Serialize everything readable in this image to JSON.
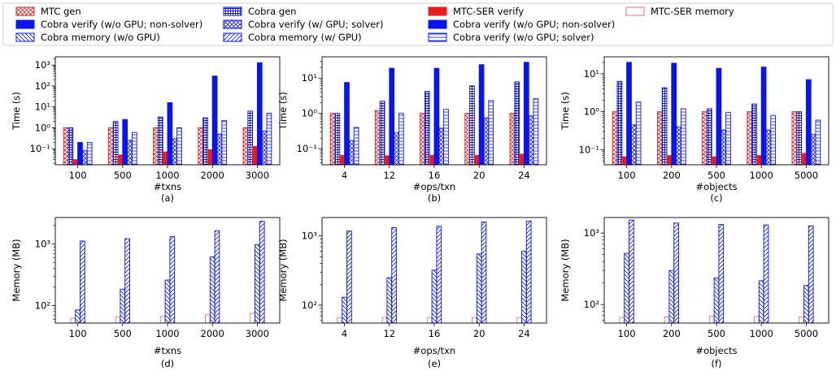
{
  "colors": {
    "red": "#e81e1e",
    "blue": "#0a14f0",
    "pink": "#f07272"
  },
  "legend": [
    {
      "label": "MTC gen",
      "style": "redcross"
    },
    {
      "label": "Cobra verify (w/o GPU; non-solver)",
      "style": "bluesolid"
    },
    {
      "label": "Cobra memory (w/o GPU)",
      "style": "bluebackslash"
    },
    {
      "label": "Cobra gen",
      "style": "bluegrid"
    },
    {
      "label": "Cobra verify (w/ GPU; solver)",
      "style": "bluecross"
    },
    {
      "label": "Cobra memory (w/ GPU)",
      "style": "blueslash"
    },
    {
      "label": "MTC-SER verify",
      "style": "redsolid"
    },
    {
      "label": "Cobra verify (w/o GPU; non-solver)",
      "style": "bluesolid"
    },
    {
      "label": "Cobra verify (w/o GPU; solver)",
      "style": "bluehline"
    },
    {
      "label": "MTC-SER memory",
      "style": "redoutline"
    }
  ],
  "chart_data": [
    {
      "type": "bar",
      "panel": "(a)",
      "xlabel": "#txns",
      "ylabel": "Time (s)",
      "yscale": "log",
      "categories": [
        "100",
        "500",
        "1000",
        "2000",
        "3000"
      ],
      "series": [
        {
          "name": "MTC gen",
          "style": "redcross",
          "values": [
            1.0,
            1.0,
            1.0,
            1.0,
            1.0
          ]
        },
        {
          "name": "Cobra gen",
          "style": "bluegrid",
          "values": [
            1.0,
            2.0,
            3.3,
            3.0,
            6.3
          ]
        },
        {
          "name": "MTC-SER verify",
          "style": "redsolid",
          "values": [
            0.03,
            0.05,
            0.07,
            0.09,
            0.13
          ]
        },
        {
          "name": "Cobra verify (w/o GPU; non-solver)",
          "style": "bluesolid",
          "values": [
            0.2,
            2.5,
            16,
            300,
            1300
          ]
        },
        {
          "name": "Cobra verify (w/ GPU; solver)",
          "style": "bluecross",
          "values": [
            0.08,
            0.25,
            0.3,
            0.5,
            0.7
          ]
        },
        {
          "name": "Cobra verify (w/o GPU; solver)",
          "style": "bluehline",
          "values": [
            0.2,
            0.6,
            1.0,
            2.2,
            5.0
          ]
        }
      ]
    },
    {
      "type": "bar",
      "panel": "(b)",
      "xlabel": "#ops/txn",
      "ylabel": "Time (s)",
      "yscale": "log",
      "categories": [
        "4",
        "12",
        "16",
        "20",
        "24"
      ],
      "series": [
        {
          "name": "MTC gen",
          "style": "redcross",
          "values": [
            1.0,
            1.2,
            1.0,
            1.0,
            1.0
          ]
        },
        {
          "name": "Cobra gen",
          "style": "bluegrid",
          "values": [
            1.0,
            2.2,
            4.2,
            6.0,
            7.8
          ]
        },
        {
          "name": "MTC-SER verify",
          "style": "redsolid",
          "values": [
            0.065,
            0.063,
            0.065,
            0.065,
            0.07
          ]
        },
        {
          "name": "Cobra verify (w/o GPU; non-solver)",
          "style": "bluesolid",
          "values": [
            7.5,
            19,
            19,
            24,
            28
          ]
        },
        {
          "name": "Cobra verify (w/ GPU; solver)",
          "style": "bluecross",
          "values": [
            0.17,
            0.28,
            0.38,
            0.75,
            0.85
          ]
        },
        {
          "name": "Cobra verify (w/o GPU; solver)",
          "style": "bluehline",
          "values": [
            0.4,
            1.0,
            1.3,
            2.3,
            2.6
          ]
        }
      ]
    },
    {
      "type": "bar",
      "panel": "(c)",
      "xlabel": "#objects",
      "ylabel": "Time (s)",
      "yscale": "log",
      "categories": [
        "100",
        "200",
        "500",
        "1000",
        "5000"
      ],
      "series": [
        {
          "name": "MTC gen",
          "style": "redcross",
          "values": [
            1.0,
            1.0,
            1.0,
            1.0,
            1.0
          ]
        },
        {
          "name": "Cobra gen",
          "style": "bluegrid",
          "values": [
            6.3,
            4.3,
            1.2,
            1.6,
            1.0
          ]
        },
        {
          "name": "MTC-SER verify",
          "style": "redsolid",
          "values": [
            0.065,
            0.07,
            0.065,
            0.07,
            0.08
          ]
        },
        {
          "name": "Cobra verify (w/o GPU; non-solver)",
          "style": "bluesolid",
          "values": [
            20,
            19,
            14,
            15,
            7
          ]
        },
        {
          "name": "Cobra verify (w/ GPU; solver)",
          "style": "bluecross",
          "values": [
            0.45,
            0.4,
            0.33,
            0.33,
            0.25
          ]
        },
        {
          "name": "Cobra verify (w/o GPU; solver)",
          "style": "bluehline",
          "values": [
            1.8,
            1.2,
            0.95,
            0.8,
            0.6
          ]
        }
      ]
    },
    {
      "type": "bar",
      "panel": "(d)",
      "xlabel": "#txns",
      "ylabel": "Memory (MB)",
      "yscale": "log",
      "categories": [
        "100",
        "500",
        "1000",
        "2000",
        "3000"
      ],
      "series": [
        {
          "name": "MTC-SER memory",
          "style": "redoutline",
          "values": [
            62,
            65,
            67,
            71,
            75
          ]
        },
        {
          "name": "Cobra memory (w/o GPU)",
          "style": "bluebackslash",
          "values": [
            85,
            185,
            260,
            620,
            980
          ]
        },
        {
          "name": "Cobra memory (w/ GPU)",
          "style": "blueslash",
          "values": [
            1120,
            1220,
            1320,
            1650,
            2350
          ]
        }
      ]
    },
    {
      "type": "bar",
      "panel": "(e)",
      "xlabel": "#ops/txn",
      "ylabel": "Memory (MB)",
      "yscale": "log",
      "categories": [
        "4",
        "12",
        "16",
        "20",
        "24"
      ],
      "series": [
        {
          "name": "MTC-SER memory",
          "style": "redoutline",
          "values": [
            66,
            66,
            66,
            66,
            66
          ]
        },
        {
          "name": "Cobra memory (w/o GPU)",
          "style": "bluebackslash",
          "values": [
            130,
            250,
            320,
            550,
            600
          ]
        },
        {
          "name": "Cobra memory (w/ GPU)",
          "style": "blueslash",
          "values": [
            1180,
            1320,
            1380,
            1600,
            1650
          ]
        }
      ]
    },
    {
      "type": "bar",
      "panel": "(f)",
      "xlabel": "#objects",
      "ylabel": "Memory (MB)",
      "yscale": "log",
      "categories": [
        "100",
        "200",
        "500",
        "1000",
        "5000"
      ],
      "series": [
        {
          "name": "MTC-SER memory",
          "style": "redoutline",
          "values": [
            66,
            67,
            68,
            68,
            67
          ]
        },
        {
          "name": "Cobra memory (w/o GPU)",
          "style": "bluebackslash",
          "values": [
            520,
            300,
            235,
            215,
            185
          ]
        },
        {
          "name": "Cobra memory (w/ GPU)",
          "style": "blueslash",
          "values": [
            1520,
            1380,
            1320,
            1300,
            1260
          ]
        }
      ]
    }
  ]
}
